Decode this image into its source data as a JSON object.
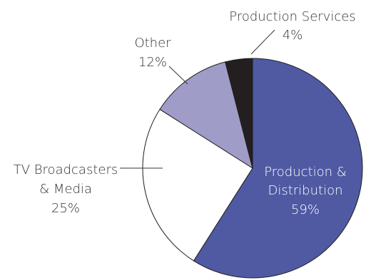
{
  "chart_data": {
    "type": "pie",
    "title": "",
    "start": "top",
    "direction": "clockwise",
    "slices": [
      {
        "key": "prod-dist",
        "label_lines": [
          "Production &",
          "Distribution"
        ],
        "value": 59,
        "value_text": "59%",
        "color": "#4f5aa3"
      },
      {
        "key": "tv-media",
        "label_lines": [
          "TV Broadcasters",
          "& Media"
        ],
        "value": 25,
        "value_text": "25%",
        "color": "#ffffff"
      },
      {
        "key": "other",
        "label_lines": [
          "Other"
        ],
        "value": 12,
        "value_text": "12%",
        "color": "#a09cc8"
      },
      {
        "key": "prod-serv",
        "label_lines": [
          "Production Services"
        ],
        "value": 4,
        "value_text": "4%",
        "color": "#231f20"
      }
    ]
  }
}
